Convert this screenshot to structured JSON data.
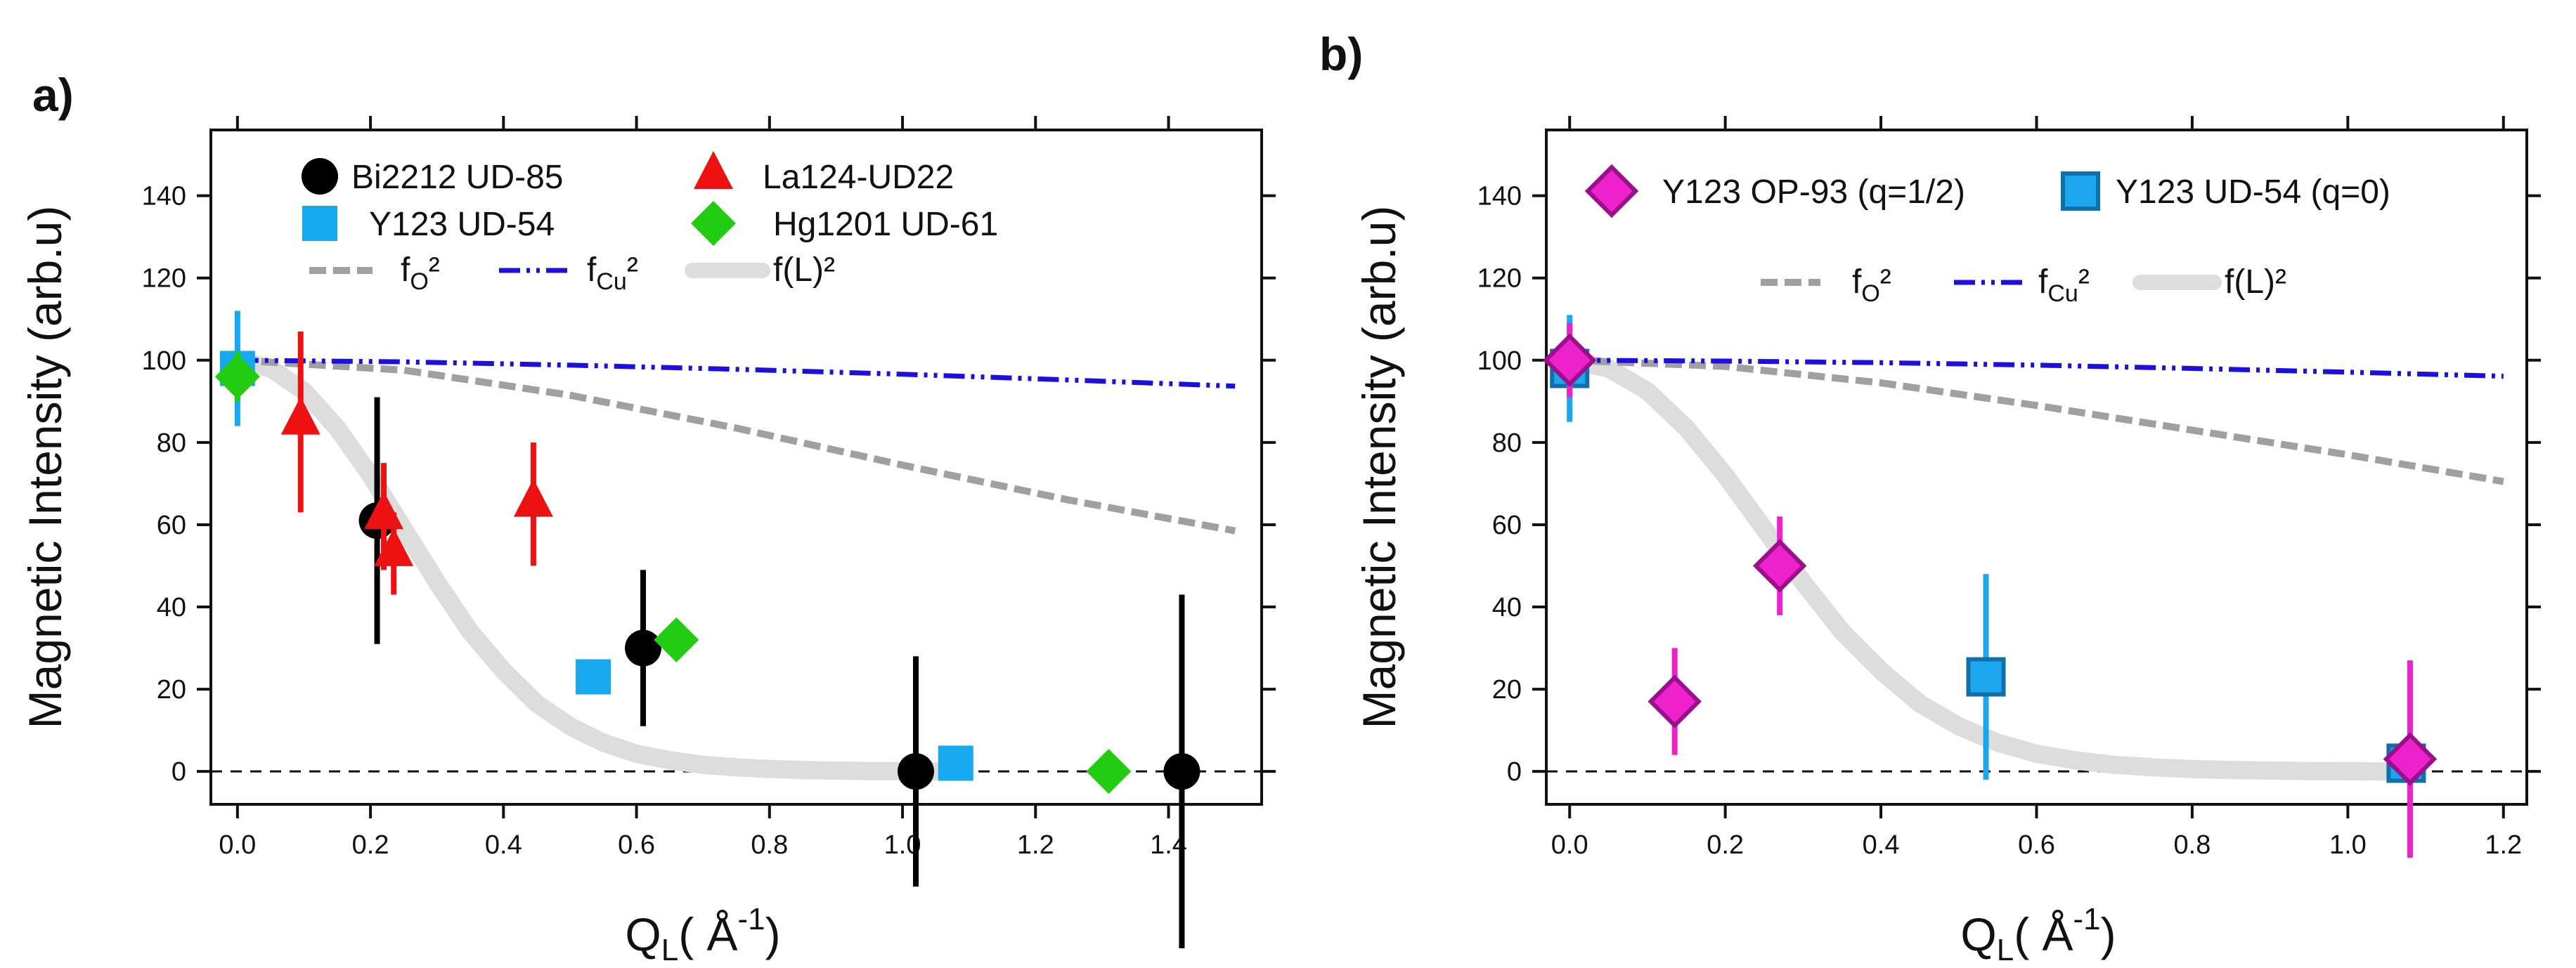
{
  "chart_data": [
    {
      "type": "scatter",
      "panel_label": "a)",
      "xlabel": "Q",
      "xlabel_sub": "L",
      "xlabel_unit": "( Å",
      "xlabel_unit_sup": "-1",
      "xlabel_close": ")",
      "ylabel": "Magnetic Intensity (arb.u)",
      "xlim": [
        -0.04,
        1.54
      ],
      "ylim": [
        -8,
        156
      ],
      "xticks": [
        0.0,
        0.2,
        0.4,
        0.6,
        0.8,
        1.0,
        1.2,
        1.4
      ],
      "xtick_labels": [
        "0.0",
        "0.2",
        "0.4",
        "0.6",
        "0.8",
        "1.0",
        "1.2",
        "1.4"
      ],
      "yticks": [
        0,
        20,
        40,
        60,
        80,
        100,
        120,
        140
      ],
      "ytick_labels": [
        "0",
        "20",
        "40",
        "60",
        "80",
        "100",
        "120",
        "140"
      ],
      "zero_line": true,
      "grid": false,
      "legend_position": "top",
      "series": [
        {
          "name": "Bi2212 UD-85",
          "marker": "circle",
          "color": "#000000",
          "err_color": "#000000",
          "points": [
            {
              "x": 0.21,
              "y": 61,
              "err": 30
            },
            {
              "x": 0.61,
              "y": 30,
              "err": 19
            },
            {
              "x": 1.02,
              "y": 0,
              "err": 28
            },
            {
              "x": 1.42,
              "y": 0,
              "err": 43
            }
          ]
        },
        {
          "name": "La124-UD22",
          "marker": "triangle",
          "color": "#ee1111",
          "err_color": "#ee1111",
          "points": [
            {
              "x": 0.095,
              "y": 85,
              "err": 22
            },
            {
              "x": 0.22,
              "y": 62,
              "err": 13
            },
            {
              "x": 0.235,
              "y": 53,
              "err": 10
            },
            {
              "x": 0.445,
              "y": 65,
              "err": 15
            }
          ]
        },
        {
          "name": "Y123 UD-54",
          "marker": "square",
          "color": "#17a9f0",
          "err_color": "#17a9f0",
          "points": [
            {
              "x": 0.0,
              "y": 98,
              "err": 14
            },
            {
              "x": 0.535,
              "y": 23,
              "err": 0
            },
            {
              "x": 1.08,
              "y": 2,
              "err": 0
            }
          ]
        },
        {
          "name": "Hg1201 UD-61",
          "marker": "diamond",
          "color": "#22cc11",
          "err_color": "#22cc11",
          "points": [
            {
              "x": 0.0,
              "y": 96,
              "err": 6
            },
            {
              "x": 0.66,
              "y": 32,
              "err": 0
            },
            {
              "x": 1.31,
              "y": 0,
              "err": 0
            }
          ]
        }
      ],
      "curves": [
        {
          "name": "f",
          "sub": "O",
          "sup": "²",
          "style": "dashed",
          "color": "#a0a0a0",
          "x": [
            0.0,
            0.25,
            0.5,
            0.75,
            1.0,
            1.25,
            1.5
          ],
          "y": [
            100,
            97.6,
            91.5,
            83.5,
            74.5,
            66,
            58.5
          ]
        },
        {
          "name": "f",
          "sub": "Cu",
          "sup": "²",
          "style": "dashdot",
          "color": "#1b10dd",
          "x": [
            0.0,
            0.25,
            0.5,
            0.75,
            1.0,
            1.25,
            1.5
          ],
          "y": [
            100,
            99.6,
            98.8,
            97.8,
            96.6,
            95.2,
            93.7
          ]
        },
        {
          "name": "f(L)²",
          "sub": "",
          "sup": "",
          "style": "thick",
          "color": "#dddddd",
          "x": [
            0.0,
            0.05,
            0.1,
            0.15,
            0.2,
            0.25,
            0.3,
            0.35,
            0.4,
            0.45,
            0.5,
            0.55,
            0.6,
            0.65,
            0.7,
            0.75,
            0.8,
            0.85,
            0.9,
            0.95,
            1.0,
            1.05
          ],
          "y": [
            100,
            98,
            92.5,
            83.5,
            72,
            59,
            46,
            34,
            24.5,
            16.5,
            11,
            7,
            4.3,
            2.7,
            1.6,
            1.0,
            0.6,
            0.35,
            0.2,
            0.1,
            0.05,
            0.0
          ]
        }
      ]
    },
    {
      "type": "scatter",
      "panel_label": "b)",
      "xlabel": "Q",
      "xlabel_sub": "L",
      "xlabel_unit": "( Å",
      "xlabel_unit_sup": "-1",
      "xlabel_close": ")",
      "ylabel": "Magnetic Intensity (arb.u)",
      "xlim": [
        -0.03,
        1.23
      ],
      "ylim": [
        -8,
        156
      ],
      "xticks": [
        0.0,
        0.2,
        0.4,
        0.6,
        0.8,
        1.0,
        1.2
      ],
      "xtick_labels": [
        "0.0",
        "0.2",
        "0.4",
        "0.6",
        "0.8",
        "1.0",
        "1.2"
      ],
      "yticks": [
        0,
        20,
        40,
        60,
        80,
        100,
        120,
        140
      ],
      "ytick_labels": [
        "0",
        "20",
        "40",
        "60",
        "80",
        "100",
        "120",
        "140"
      ],
      "zero_line": true,
      "grid": false,
      "legend_position": "top",
      "series": [
        {
          "name": "Y123 UD-54  (q=0)",
          "marker": "square",
          "color": "#1ca6ee",
          "edge": "#1270a8",
          "err_color": "#1ca6ee",
          "points": [
            {
              "x": 0.0,
              "y": 98,
              "err": 13
            },
            {
              "x": 0.535,
              "y": 23,
              "err": 25
            },
            {
              "x": 1.075,
              "y": 2,
              "err": 0
            }
          ]
        },
        {
          "name": "Y123 OP-93 (q=1/2)",
          "marker": "diamond",
          "color": "#ee22cc",
          "edge": "#9a0f8a",
          "err_color": "#ee22cc",
          "points": [
            {
              "x": 0.0,
              "y": 100,
              "err": 9
            },
            {
              "x": 0.135,
              "y": 17,
              "err": 13
            },
            {
              "x": 0.27,
              "y": 50,
              "err": 12
            },
            {
              "x": 1.08,
              "y": 3,
              "err": 24
            }
          ]
        }
      ],
      "curves": [
        {
          "name": "f",
          "sub": "O",
          "sup": "²",
          "style": "dashed",
          "color": "#a0a0a0",
          "x": [
            0.0,
            0.2,
            0.4,
            0.6,
            0.8,
            1.0,
            1.2
          ],
          "y": [
            100,
            98.5,
            94.5,
            89,
            83,
            77,
            70.5
          ]
        },
        {
          "name": "f",
          "sub": "Cu",
          "sup": "²",
          "style": "dashdot",
          "color": "#1b10dd",
          "x": [
            0.0,
            0.2,
            0.4,
            0.6,
            0.8,
            1.0,
            1.2
          ],
          "y": [
            100,
            99.8,
            99.4,
            98.8,
            98.0,
            97.1,
            96.1
          ]
        },
        {
          "name": "f(L)²",
          "sub": "",
          "sup": "",
          "style": "thick",
          "color": "#dddddd",
          "x": [
            0.0,
            0.05,
            0.1,
            0.15,
            0.2,
            0.25,
            0.3,
            0.35,
            0.4,
            0.45,
            0.5,
            0.55,
            0.6,
            0.65,
            0.7,
            0.75,
            0.8,
            0.85,
            0.9,
            0.95,
            1.0,
            1.05,
            1.08
          ],
          "y": [
            100,
            98,
            92.5,
            83.5,
            72,
            59,
            46,
            34,
            24.5,
            16.5,
            11,
            7,
            4.3,
            2.7,
            1.6,
            1.0,
            0.6,
            0.35,
            0.2,
            0.1,
            0.05,
            0.0,
            0.0
          ]
        }
      ]
    }
  ]
}
